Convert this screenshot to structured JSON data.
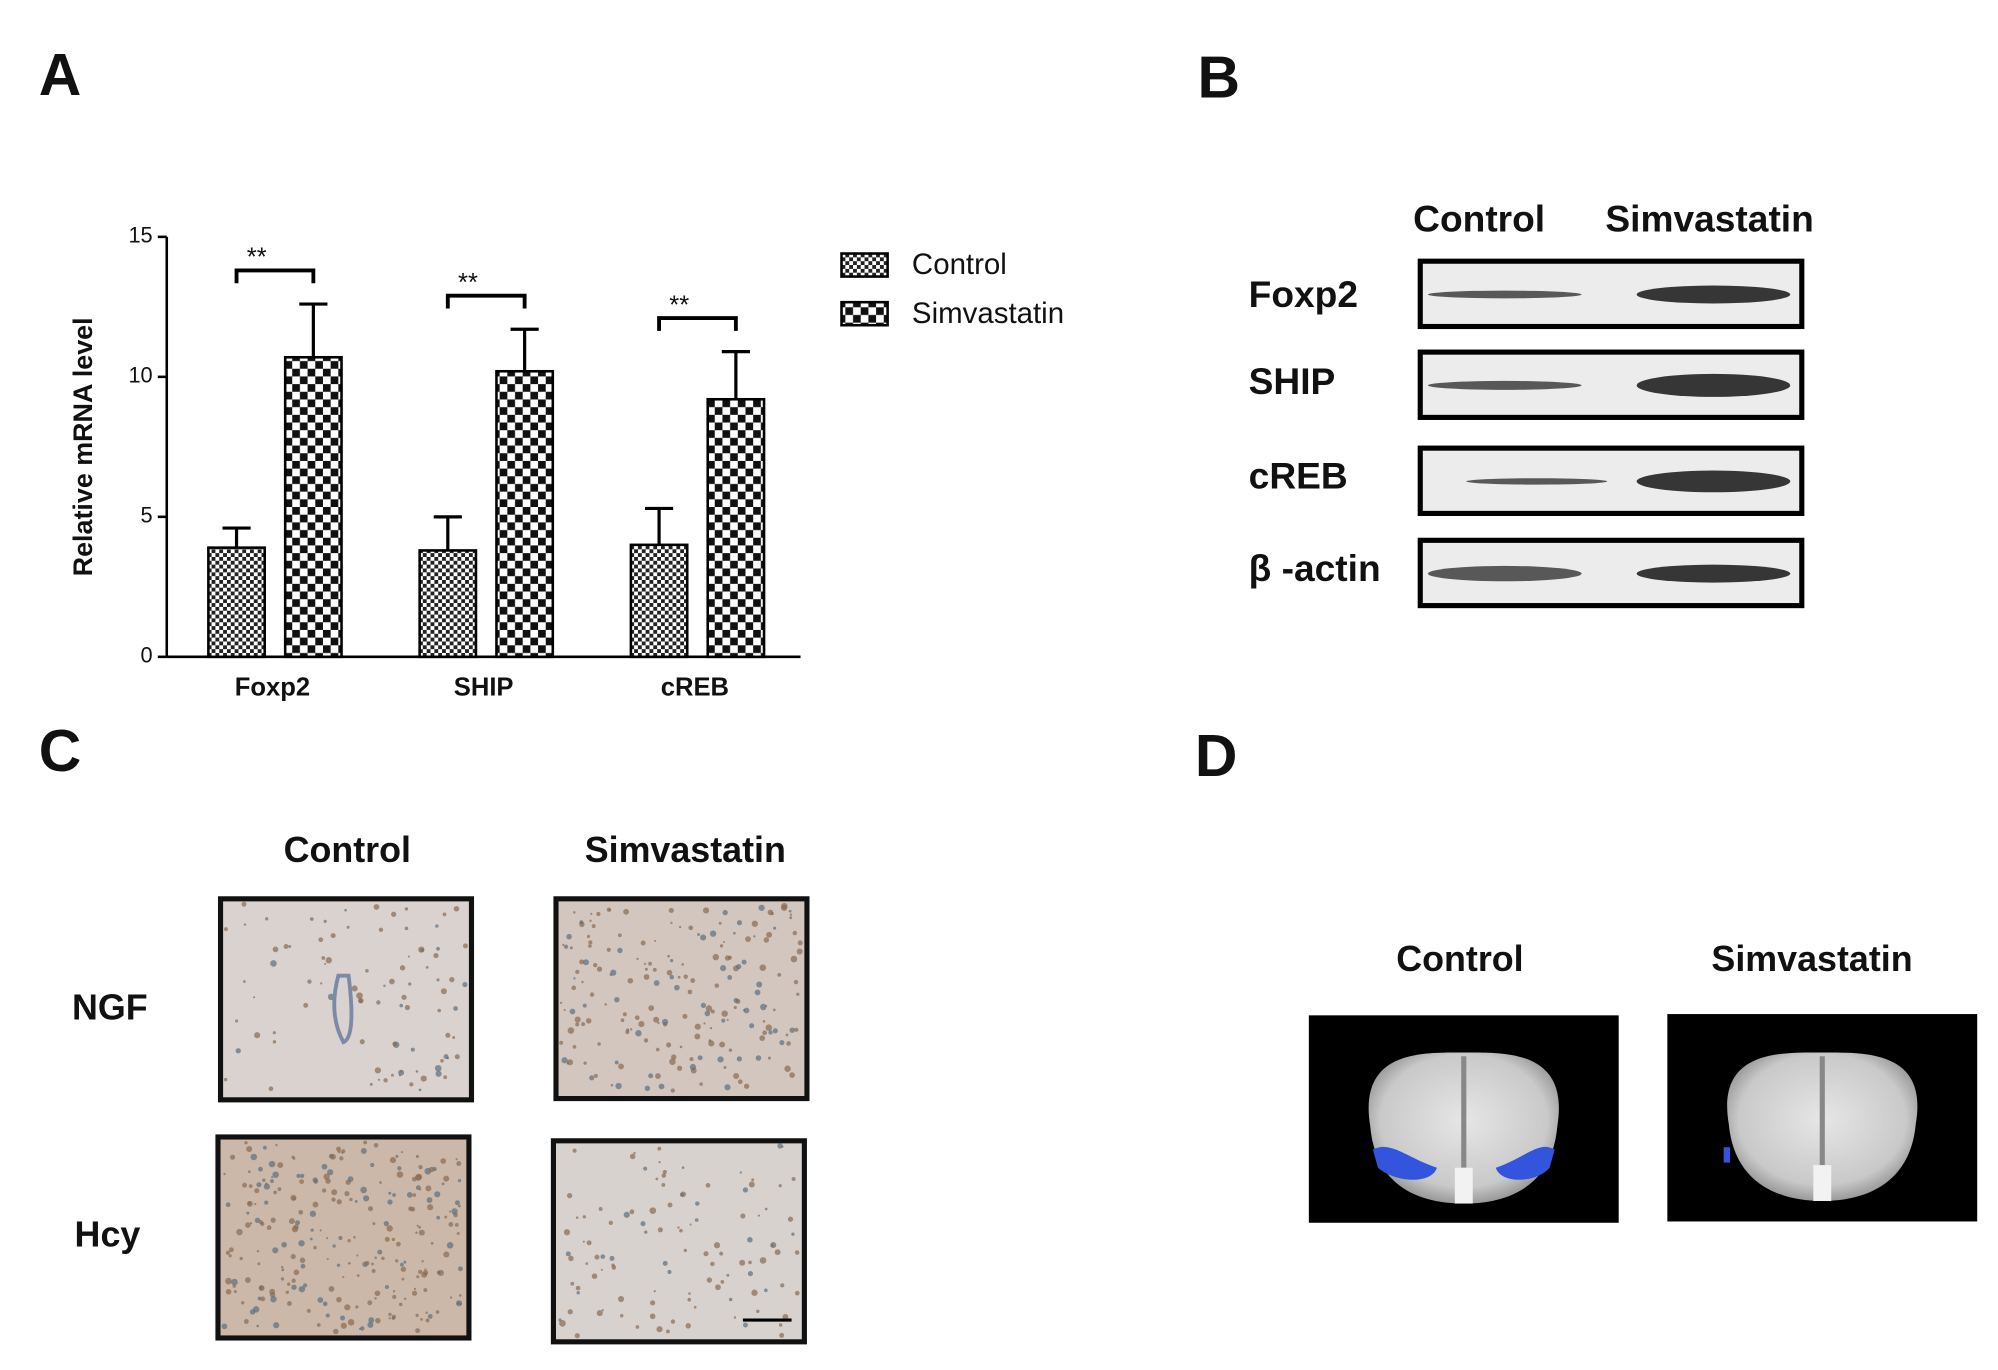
{
  "chart_data": {
    "type": "bar",
    "ylabel": "Relative mRNA level",
    "categories": [
      "Foxp2",
      "SHIP",
      "cREB"
    ],
    "series": [
      {
        "name": "Control",
        "color": "#000000",
        "values": [
          3.9,
          3.8,
          4.0
        ],
        "errors": [
          0.7,
          1.2,
          1.3
        ]
      },
      {
        "name": "Simvastatin",
        "color": "#000000",
        "values": [
          10.7,
          10.2,
          9.2
        ],
        "errors": [
          1.9,
          1.5,
          1.7
        ]
      }
    ],
    "annotations": [
      "**",
      "**",
      "**"
    ],
    "ylim": [
      0,
      15
    ],
    "yticks": [
      0,
      5,
      10,
      15
    ],
    "grid": false,
    "legend": "right"
  },
  "panels": [
    "A",
    "B",
    "C",
    "D"
  ],
  "blot": {
    "columns": [
      "Control",
      "Simvastatin"
    ],
    "rows": [
      "Foxp2",
      "SHIP",
      "cREB",
      "β -actin"
    ]
  },
  "histology": {
    "columns": [
      "Control",
      "Simvastatin"
    ],
    "rows": [
      "NGF",
      "Hcy"
    ]
  },
  "imaging": {
    "columns": [
      "Control",
      "Simvastatin"
    ]
  }
}
